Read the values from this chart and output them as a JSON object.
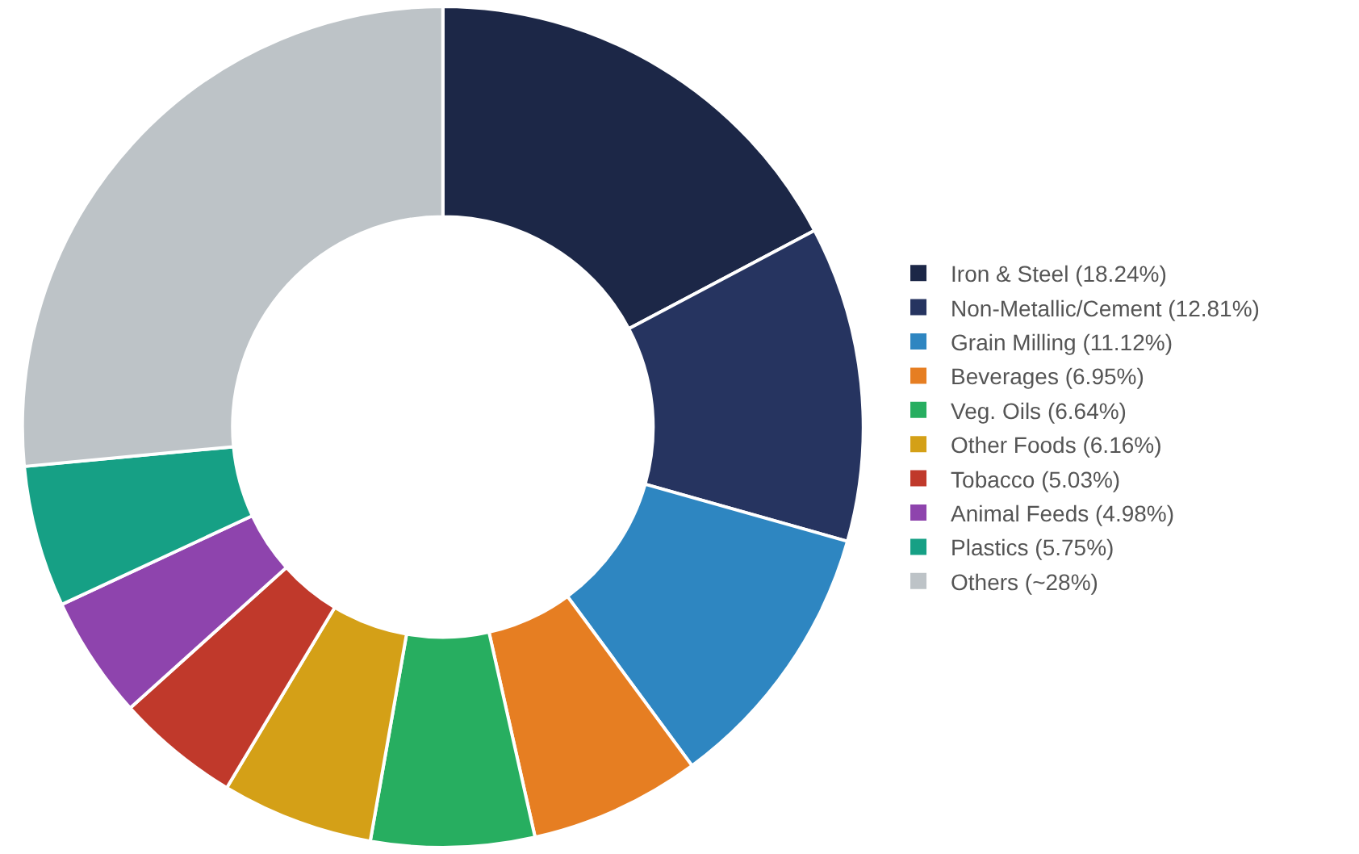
{
  "chart_data": {
    "type": "donut",
    "categories": [
      "Iron & Steel (18.24%)",
      "Non-Metallic/Cement (12.81%)",
      "Grain Milling (11.12%)",
      "Beverages (6.95%)",
      "Veg. Oils (6.64%)",
      "Other Foods (6.16%)",
      "Tobacco (5.03%)",
      "Animal Feeds (4.98%)",
      "Plastics (5.75%)",
      "Others (~28%)"
    ],
    "values": [
      18.24,
      12.81,
      11.12,
      6.95,
      6.64,
      6.16,
      5.03,
      4.98,
      5.75,
      28
    ],
    "colors": [
      "#1c2747",
      "#263460",
      "#2e86c1",
      "#e67e22",
      "#27ae60",
      "#d4a017",
      "#c0392b",
      "#8e44ad",
      "#16a085",
      "#bdc3c7"
    ],
    "legend": "right"
  }
}
